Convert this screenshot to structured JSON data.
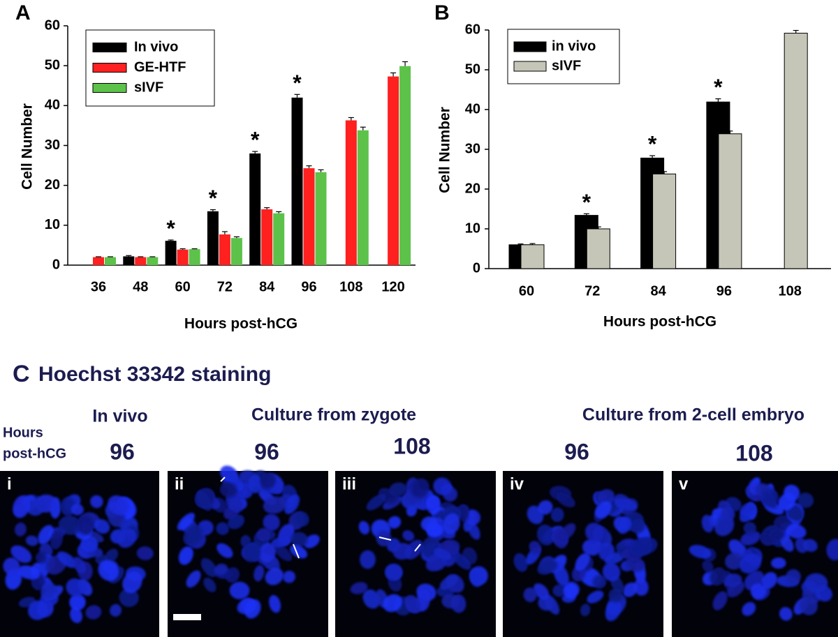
{
  "chart_data": [
    {
      "type": "bar",
      "panel": "A",
      "y_label": "Cell Number",
      "x_label": "Hours post-hCG",
      "categories": [
        "36",
        "48",
        "60",
        "72",
        "84",
        "96",
        "108",
        "120"
      ],
      "series": [
        {
          "name": "In vivo",
          "color": "#000000",
          "values": [
            null,
            2.2,
            6.1,
            13.5,
            28,
            42,
            null,
            null
          ],
          "errors": [
            null,
            0.2,
            0.2,
            0.4,
            0.5,
            0.8,
            null,
            null
          ]
        },
        {
          "name": "GE-HTF",
          "color": "#ff2020",
          "values": [
            2,
            2,
            3.9,
            7.7,
            14,
            24.3,
            36.3,
            47.3
          ],
          "errors": [
            0.1,
            0.1,
            0.2,
            0.7,
            0.4,
            0.6,
            0.7,
            0.9
          ]
        },
        {
          "name": "sIVF",
          "color": "#5cc24a",
          "values": [
            2,
            2,
            4,
            6.8,
            13,
            23.3,
            33.8,
            49.9
          ],
          "errors": [
            0.1,
            0.1,
            0.1,
            0.3,
            0.4,
            0.6,
            0.8,
            1.1
          ]
        }
      ],
      "ylim": [
        0,
        60
      ],
      "yticks": [
        0,
        10,
        20,
        30,
        40,
        50,
        60
      ],
      "legend": "upper left",
      "annotations": [
        {
          "text": "*",
          "category": "60"
        },
        {
          "text": "*",
          "category": "72"
        },
        {
          "text": "*",
          "category": "84"
        },
        {
          "text": "*",
          "category": "96"
        }
      ]
    },
    {
      "type": "bar",
      "panel": "B",
      "y_label": "Cell Number",
      "x_label": "Hours post-hCG",
      "categories": [
        "60",
        "72",
        "84",
        "96",
        "108"
      ],
      "series": [
        {
          "name": "in vivo",
          "color": "#000000",
          "values": [
            6,
            13.4,
            27.8,
            41.9,
            null
          ],
          "errors": [
            0.2,
            0.4,
            0.6,
            0.8,
            null
          ]
        },
        {
          "name": "sIVF",
          "color": "#c6c6b8",
          "values": [
            6,
            10,
            23.8,
            33.9,
            59.2
          ],
          "errors": [
            0.3,
            0.5,
            0.6,
            0.7,
            0.7
          ]
        }
      ],
      "ylim": [
        0,
        60
      ],
      "yticks": [
        0,
        10,
        20,
        30,
        40,
        50,
        60
      ],
      "legend": "upper left",
      "annotations": [
        {
          "text": "*",
          "category": "72"
        },
        {
          "text": "*",
          "category": "84"
        },
        {
          "text": "*",
          "category": "96"
        }
      ]
    }
  ],
  "panel_c": {
    "letter": "C",
    "title": "Hoechst 33342 staining",
    "hours_label": [
      "Hours",
      "post-hCG"
    ],
    "groups": [
      "In vivo",
      "Culture from zygote",
      "Culture from 2-cell embryo"
    ],
    "images": [
      {
        "label": "i",
        "hours": 96
      },
      {
        "label": "ii",
        "hours": 96
      },
      {
        "label": "iii",
        "hours": 108
      },
      {
        "label": "iv",
        "hours": 96
      },
      {
        "label": "v",
        "hours": 108
      }
    ]
  }
}
